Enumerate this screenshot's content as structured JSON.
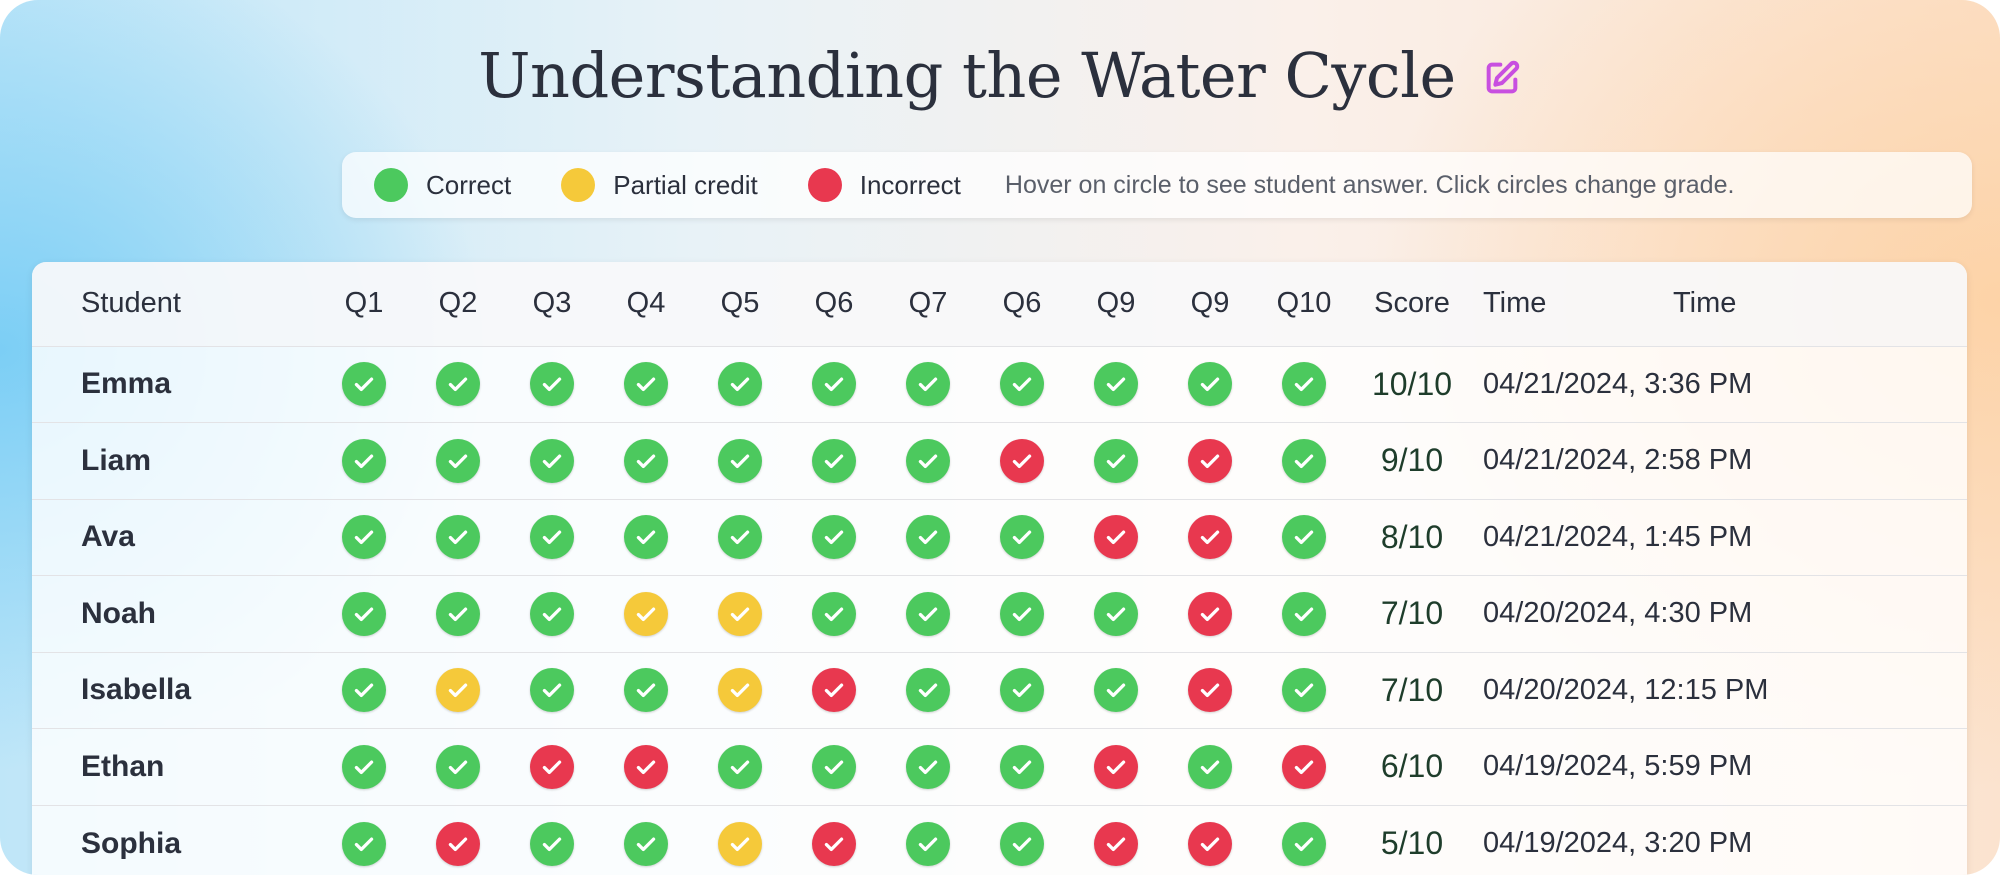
{
  "title": "Understanding the Water Cycle",
  "colors": {
    "correct": "#4cc95e",
    "partial": "#f5c93a",
    "incorrect": "#e8384f",
    "edit_icon": "#c84fe0"
  },
  "legend": {
    "items": [
      {
        "label": "Correct",
        "status": "correct"
      },
      {
        "label": "Partial credit",
        "status": "partial"
      },
      {
        "label": "Incorrect",
        "status": "incorrect"
      }
    ],
    "hint": "Hover on circle to see student answer. Click circles change grade."
  },
  "table": {
    "headers": {
      "student": "Student",
      "questions": [
        "Q1",
        "Q2",
        "Q3",
        "Q4",
        "Q5",
        "Q6",
        "Q7",
        "Q6",
        "Q9",
        "Q9",
        "Q10"
      ],
      "score": "Score",
      "time_a": "Time",
      "time_b": "Time"
    },
    "rows": [
      {
        "name": "Emma",
        "grades": [
          "c",
          "c",
          "c",
          "c",
          "c",
          "c",
          "c",
          "c",
          "c",
          "c",
          "c"
        ],
        "score": "10/10",
        "time": "04/21/2024, 3:36 PM"
      },
      {
        "name": "Liam",
        "grades": [
          "c",
          "c",
          "c",
          "c",
          "c",
          "c",
          "c",
          "i",
          "c",
          "i",
          "c"
        ],
        "score": "9/10",
        "time": "04/21/2024, 2:58 PM"
      },
      {
        "name": "Ava",
        "grades": [
          "c",
          "c",
          "c",
          "c",
          "c",
          "c",
          "c",
          "c",
          "i",
          "i",
          "c"
        ],
        "score": "8/10",
        "time": "04/21/2024, 1:45 PM"
      },
      {
        "name": "Noah",
        "grades": [
          "c",
          "c",
          "c",
          "p",
          "p",
          "c",
          "c",
          "c",
          "c",
          "i",
          "c"
        ],
        "score": "7/10",
        "time": "04/20/2024, 4:30 PM"
      },
      {
        "name": "Isabella",
        "grades": [
          "c",
          "p",
          "c",
          "c",
          "p",
          "i",
          "c",
          "c",
          "c",
          "i",
          "c"
        ],
        "score": "7/10",
        "time": "04/20/2024, 12:15 PM"
      },
      {
        "name": "Ethan",
        "grades": [
          "c",
          "c",
          "i",
          "i",
          "c",
          "c",
          "c",
          "c",
          "i",
          "c",
          "i"
        ],
        "score": "6/10",
        "time": "04/19/2024, 5:59 PM"
      },
      {
        "name": "Sophia",
        "grades": [
          "c",
          "i",
          "c",
          "c",
          "p",
          "i",
          "c",
          "c",
          "i",
          "i",
          "c"
        ],
        "score": "5/10",
        "time": "04/19/2024, 3:20 PM"
      }
    ]
  }
}
